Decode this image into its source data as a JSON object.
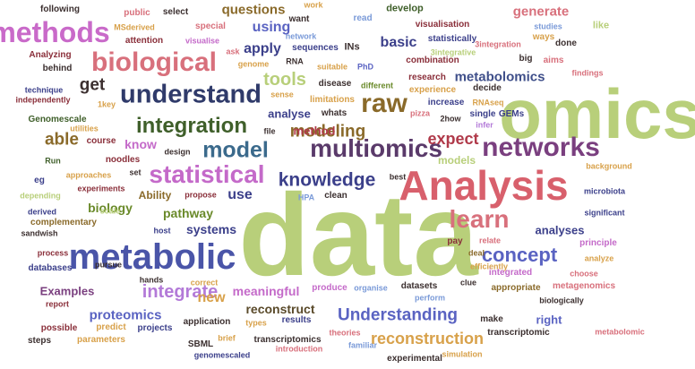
{
  "palette": {
    "olive": "#b8cf7a",
    "pink": "#d8609a",
    "navy": "#3b3f8a",
    "magenta": "#c46ac9",
    "blue": "#5a63c2",
    "rose": "#d8707c",
    "teal": "#2f7f8c",
    "brown": "#8a6a2a",
    "dark": "#3b2f2f",
    "green": "#6a8a2a",
    "purple": "#7a3f7f",
    "lilac": "#b37ad8",
    "sky": "#7a9ad8",
    "orange": "#d8a14a",
    "maroon": "#8a2f3a",
    "darkgreen": "#3f5f2a",
    "crimson": "#b03a4a"
  },
  "words": [
    {
      "text": "data",
      "color": "#b8cf7a"
    },
    {
      "text": "omics",
      "color": "#b8cf7a"
    },
    {
      "text": "Analysis",
      "color": "#d8606c"
    },
    {
      "text": "metabolic",
      "color": "#4a55a8"
    },
    {
      "text": "biological",
      "color": "#d8707c"
    },
    {
      "text": "methods",
      "color": "#c96ac9"
    },
    {
      "text": "understand",
      "color": "#2f3a6a"
    },
    {
      "text": "networks",
      "color": "#7a3f7f"
    },
    {
      "text": "statistical",
      "color": "#c46ac9"
    },
    {
      "text": "multiomics",
      "color": "#5a3a6a"
    },
    {
      "text": "raw",
      "color": "#8a6a2a"
    },
    {
      "text": "learn",
      "color": "#d8707c"
    },
    {
      "text": "knowledge",
      "color": "#3b3f8a"
    },
    {
      "text": "integration",
      "color": "#3f5f2a"
    },
    {
      "text": "model",
      "color": "#3b6a8c"
    },
    {
      "text": "concept",
      "color": "#5a63c2"
    },
    {
      "text": "Understanding",
      "color": "#5a63c2"
    },
    {
      "text": "modeling",
      "color": "#8a6a2a"
    },
    {
      "text": "tools",
      "color": "#b8cf7a"
    },
    {
      "text": "integrate",
      "color": "#b37ad8"
    },
    {
      "text": "reconstruction",
      "color": "#d8a14a"
    },
    {
      "text": "get",
      "color": "#3b2f2f"
    },
    {
      "text": "able",
      "color": "#8a6a2a"
    },
    {
      "text": "expect",
      "color": "#b03a4a"
    },
    {
      "text": "metabolomics",
      "color": "#3f4f8a"
    },
    {
      "text": "questions",
      "color": "#8a6a2a"
    },
    {
      "text": "generate",
      "color": "#d8707c"
    },
    {
      "text": "basic",
      "color": "#3b3f8a"
    },
    {
      "text": "apply",
      "color": "#3b3f8a"
    },
    {
      "text": "using",
      "color": "#5a63c2"
    },
    {
      "text": "new",
      "color": "#d8a14a"
    },
    {
      "text": "know",
      "color": "#c46ac9"
    },
    {
      "text": "use",
      "color": "#3b3f8a"
    },
    {
      "text": "proteomics",
      "color": "#5a63c2"
    },
    {
      "text": "reconstruct",
      "color": "#5a4a2a"
    },
    {
      "text": "meaningful",
      "color": "#c46ac9"
    },
    {
      "text": "systems",
      "color": "#3b3f8a"
    },
    {
      "text": "pathway",
      "color": "#6a8a2a"
    },
    {
      "text": "biology",
      "color": "#6a8a2a"
    },
    {
      "text": "analyses",
      "color": "#3b3f8a"
    },
    {
      "text": "models",
      "color": "#b8cf7a"
    },
    {
      "text": "Examples",
      "color": "#7a3f7f"
    },
    {
      "text": "right",
      "color": "#5a63c2"
    },
    {
      "text": "analyse",
      "color": "#3b3f8a"
    },
    {
      "text": "method",
      "color": "#b03a4a"
    },
    {
      "text": "Ability",
      "color": "#8a6a2a"
    },
    {
      "text": "following",
      "color": "#3b2f2f"
    },
    {
      "text": "public",
      "color": "#d8707c"
    },
    {
      "text": "select",
      "color": "#3b2f2f"
    },
    {
      "text": "work",
      "color": "#d8a14a"
    },
    {
      "text": "develop",
      "color": "#3f5f2a"
    },
    {
      "text": "read",
      "color": "#7a9ad8"
    },
    {
      "text": "want",
      "color": "#3b2f2f"
    },
    {
      "text": "like",
      "color": "#b8cf7a"
    },
    {
      "text": "MSderived",
      "color": "#d8a14a"
    },
    {
      "text": "special",
      "color": "#d8707c"
    },
    {
      "text": "network",
      "color": "#7a9ad8"
    },
    {
      "text": "visualisation",
      "color": "#8a2f3a"
    },
    {
      "text": "studies",
      "color": "#7a9ad8"
    },
    {
      "text": "ways",
      "color": "#d8a14a"
    },
    {
      "text": "attention",
      "color": "#8a2f3a"
    },
    {
      "text": "visualise",
      "color": "#c46ac9"
    },
    {
      "text": "ask",
      "color": "#d8707c"
    },
    {
      "text": "sequences",
      "color": "#3b3f8a"
    },
    {
      "text": "INs",
      "color": "#3b2f2f"
    },
    {
      "text": "3integration",
      "color": "#d8707c"
    },
    {
      "text": "statistically",
      "color": "#3b3f8a"
    },
    {
      "text": "done",
      "color": "#3b2f2f"
    },
    {
      "text": "Analyzing",
      "color": "#8a2f3a"
    },
    {
      "text": "genome",
      "color": "#d8a14a"
    },
    {
      "text": "RNA",
      "color": "#3b2f2f"
    },
    {
      "text": "suitable",
      "color": "#d8a14a"
    },
    {
      "text": "PhD",
      "color": "#5a63c2"
    },
    {
      "text": "combination",
      "color": "#8a2f3a"
    },
    {
      "text": "big",
      "color": "#3b2f2f"
    },
    {
      "text": "aims",
      "color": "#d8707c"
    },
    {
      "text": "3integrative",
      "color": "#b8cf7a"
    },
    {
      "text": "findings",
      "color": "#d8707c"
    },
    {
      "text": "behind",
      "color": "#3b2f2f"
    },
    {
      "text": "disease",
      "color": "#3b2f2f"
    },
    {
      "text": "different",
      "color": "#6a8a2a"
    },
    {
      "text": "research",
      "color": "#8a2f3a"
    },
    {
      "text": "decide",
      "color": "#3b2f2f"
    },
    {
      "text": "technique",
      "color": "#3b3f8a"
    },
    {
      "text": "independently",
      "color": "#8a2f3a"
    },
    {
      "text": "sense",
      "color": "#d8a14a"
    },
    {
      "text": "limitations",
      "color": "#d8a14a"
    },
    {
      "text": "experience",
      "color": "#d8a14a"
    },
    {
      "text": "increase",
      "color": "#3b3f8a"
    },
    {
      "text": "1key",
      "color": "#d8a14a"
    },
    {
      "text": "whats",
      "color": "#3b2f2f"
    },
    {
      "text": "pizza",
      "color": "#d8707c"
    },
    {
      "text": "2how",
      "color": "#3b2f2f"
    },
    {
      "text": "single",
      "color": "#3b3f8a"
    },
    {
      "text": "GEMs",
      "color": "#3b3f8a"
    },
    {
      "text": "RNAseq",
      "color": "#d8a14a"
    },
    {
      "text": "infer",
      "color": "#b37ad8"
    },
    {
      "text": "Genomescale",
      "color": "#3f5f2a"
    },
    {
      "text": "file",
      "color": "#3b2f2f"
    },
    {
      "text": "utilities",
      "color": "#d8a14a"
    },
    {
      "text": "course",
      "color": "#8a2f3a"
    },
    {
      "text": "design",
      "color": "#3b2f2f"
    },
    {
      "text": "Run",
      "color": "#3f5f2a"
    },
    {
      "text": "noodles",
      "color": "#8a2f3a"
    },
    {
      "text": "set",
      "color": "#3b2f2f"
    },
    {
      "text": "background",
      "color": "#d8a14a"
    },
    {
      "text": "approaches",
      "color": "#d8a14a"
    },
    {
      "text": "best",
      "color": "#3b2f2f"
    },
    {
      "text": "eg",
      "color": "#3b3f8a"
    },
    {
      "text": "experiments",
      "color": "#8a2f3a"
    },
    {
      "text": "microbiota",
      "color": "#3b3f8a"
    },
    {
      "text": "depending",
      "color": "#b8cf7a"
    },
    {
      "text": "propose",
      "color": "#8a2f3a"
    },
    {
      "text": "HPA",
      "color": "#7a9ad8"
    },
    {
      "text": "clean",
      "color": "#3b2f2f"
    },
    {
      "text": "scale",
      "color": "#b8cf7a"
    },
    {
      "text": "derived",
      "color": "#3b3f8a"
    },
    {
      "text": "complementary",
      "color": "#8a6a2a"
    },
    {
      "text": "significant",
      "color": "#3b3f8a"
    },
    {
      "text": "sandwish",
      "color": "#3b2f2f"
    },
    {
      "text": "host",
      "color": "#3b3f8a"
    },
    {
      "text": "relate",
      "color": "#d8707c"
    },
    {
      "text": "principle",
      "color": "#c46ac9"
    },
    {
      "text": "pay",
      "color": "#8a2f3a"
    },
    {
      "text": "process",
      "color": "#8a2f3a"
    },
    {
      "text": "deal",
      "color": "#8a6a2a"
    },
    {
      "text": "analyze",
      "color": "#d8a14a"
    },
    {
      "text": "databases",
      "color": "#3b3f8a"
    },
    {
      "text": "pursue",
      "color": "#3b2f2f"
    },
    {
      "text": "efficiently",
      "color": "#d8a14a"
    },
    {
      "text": "integrated",
      "color": "#c46ac9"
    },
    {
      "text": "choose",
      "color": "#d8707c"
    },
    {
      "text": "hands",
      "color": "#3b2f2f"
    },
    {
      "text": "correct",
      "color": "#d8a14a"
    },
    {
      "text": "produce",
      "color": "#c46ac9"
    },
    {
      "text": "organise",
      "color": "#7a9ad8"
    },
    {
      "text": "datasets",
      "color": "#3b2f2f"
    },
    {
      "text": "perform",
      "color": "#7a9ad8"
    },
    {
      "text": "clue",
      "color": "#3b2f2f"
    },
    {
      "text": "appropriate",
      "color": "#8a6a2a"
    },
    {
      "text": "metagenomics",
      "color": "#d8707c"
    },
    {
      "text": "biologically",
      "color": "#3b2f2f"
    },
    {
      "text": "report",
      "color": "#8a2f3a"
    },
    {
      "text": "possible",
      "color": "#8a2f3a"
    },
    {
      "text": "predict",
      "color": "#d8a14a"
    },
    {
      "text": "application",
      "color": "#3b2f2f"
    },
    {
      "text": "types",
      "color": "#d8a14a"
    },
    {
      "text": "results",
      "color": "#3b3f8a"
    },
    {
      "text": "make",
      "color": "#3b2f2f"
    },
    {
      "text": "steps",
      "color": "#3b2f2f"
    },
    {
      "text": "parameters",
      "color": "#d8a14a"
    },
    {
      "text": "projects",
      "color": "#3b3f8a"
    },
    {
      "text": "SBML",
      "color": "#3b2f2f"
    },
    {
      "text": "brief",
      "color": "#d8a14a"
    },
    {
      "text": "transcriptomics",
      "color": "#3b2f2f"
    },
    {
      "text": "introduction",
      "color": "#d8707c"
    },
    {
      "text": "theories",
      "color": "#d8707c"
    },
    {
      "text": "familiar",
      "color": "#7a9ad8"
    },
    {
      "text": "transcriptomic",
      "color": "#3b2f2f"
    },
    {
      "text": "metabolomic",
      "color": "#d8707c"
    },
    {
      "text": "genomescaled",
      "color": "#3b3f8a"
    },
    {
      "text": "experimental",
      "color": "#3b2f2f"
    },
    {
      "text": "simulation",
      "color": "#d8a14a"
    }
  ]
}
